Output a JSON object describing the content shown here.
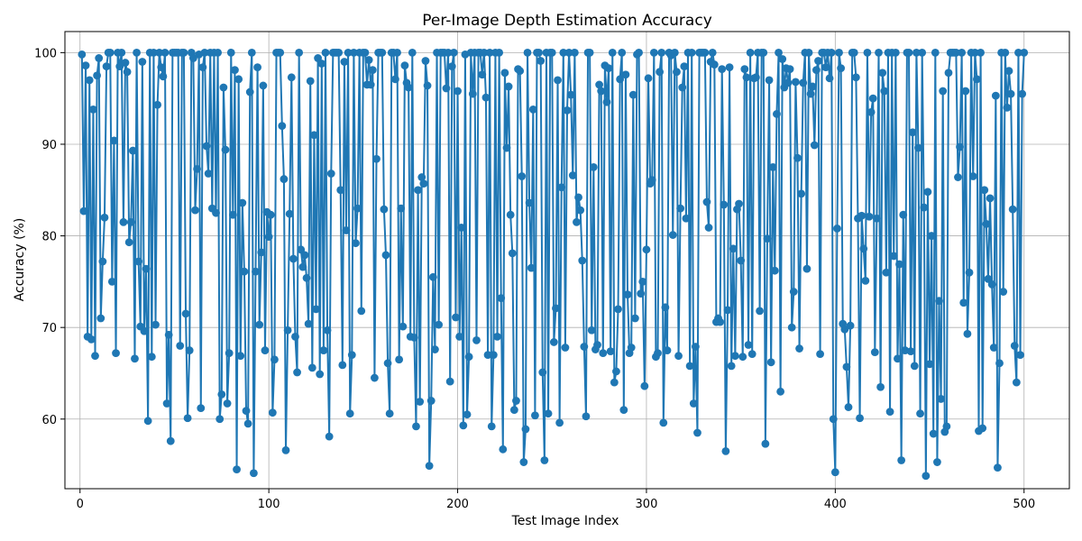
{
  "chart_data": {
    "type": "line",
    "title": "Per-Image Depth Estimation Accuracy",
    "xlabel": "Test Image Index",
    "ylabel": "Accuracy (%)",
    "xlim": [
      -8,
      524
    ],
    "ylim": [
      52.4,
      102.3
    ],
    "xticks": [
      0,
      100,
      200,
      300,
      400,
      500
    ],
    "yticks": [
      60,
      70,
      80,
      90,
      100
    ],
    "grid": true,
    "marker": "circle",
    "color": "#1f77b4",
    "series": [
      {
        "x": [
          1,
          2,
          3,
          4,
          5,
          6,
          7,
          8,
          9,
          10,
          11,
          12,
          13,
          14,
          15,
          16,
          17,
          18,
          19,
          20,
          21,
          22,
          23,
          24,
          25,
          26,
          27,
          28,
          29,
          30,
          31,
          32,
          33,
          34,
          35,
          36,
          37,
          38,
          39,
          40,
          41,
          42,
          43,
          44,
          45,
          46,
          47,
          48,
          49,
          50,
          51,
          52,
          53,
          54,
          55,
          56,
          57,
          58,
          59,
          60,
          61,
          62,
          63,
          64,
          65,
          66,
          67,
          68,
          69,
          70,
          71,
          72,
          73,
          74,
          75,
          76,
          77,
          78,
          79,
          80,
          81,
          82,
          83,
          84,
          85,
          86,
          87,
          88,
          89,
          90,
          91,
          92,
          93,
          94,
          95,
          96,
          97,
          98,
          99,
          100,
          101,
          102,
          103,
          104,
          105,
          106,
          107,
          108,
          109,
          110,
          111,
          112,
          113,
          114,
          115,
          116,
          117,
          118,
          119,
          120,
          121,
          122,
          123,
          124,
          125,
          126,
          127,
          128,
          129,
          130,
          131,
          132,
          133,
          134,
          135,
          136,
          137,
          138,
          139,
          140,
          141,
          142,
          143,
          144,
          145,
          146,
          147,
          148,
          149,
          150,
          151,
          152,
          153,
          154,
          155,
          156,
          157,
          158,
          159,
          160,
          161,
          162,
          163,
          164,
          165,
          166,
          167,
          168,
          169,
          170,
          171,
          172,
          173,
          174,
          175,
          176,
          177,
          178,
          179,
          180,
          181,
          182,
          183,
          184,
          185,
          186,
          187,
          188,
          189,
          190,
          191,
          192,
          193,
          194,
          195,
          196,
          197,
          198,
          199,
          200,
          201,
          202,
          203,
          204,
          205,
          206,
          207,
          208,
          209,
          210,
          211,
          212,
          213,
          214,
          215,
          216,
          217,
          218,
          219,
          220,
          221,
          222,
          223,
          224,
          225,
          226,
          227,
          228,
          229,
          230,
          231,
          232,
          233,
          234,
          235,
          236,
          237,
          238,
          239,
          240,
          241,
          242,
          243,
          244,
          245,
          246,
          247,
          248,
          249,
          250,
          251,
          252,
          253,
          254,
          255,
          256,
          257,
          258,
          259,
          260,
          261,
          262,
          263,
          264,
          265,
          266,
          267,
          268,
          269,
          270,
          271,
          272,
          273,
          274,
          275,
          276,
          277,
          278,
          279,
          280,
          281,
          282,
          283,
          284,
          285,
          286,
          287,
          288,
          289,
          290,
          291,
          292,
          293,
          294,
          295,
          296,
          297,
          298,
          299,
          300,
          301,
          302,
          303,
          304,
          305,
          306,
          307,
          308,
          309,
          310,
          311,
          312,
          313,
          314,
          315,
          316,
          317,
          318,
          319,
          320,
          321,
          322,
          323,
          324,
          325,
          326,
          327,
          328,
          329,
          330,
          331,
          332,
          333,
          334,
          335,
          336,
          337,
          338,
          339,
          340,
          341,
          342,
          343,
          344,
          345,
          346,
          347,
          348,
          349,
          350,
          351,
          352,
          353,
          354,
          355,
          356,
          357,
          358,
          359,
          360,
          361,
          362,
          363,
          364,
          365,
          366,
          367,
          368,
          369,
          370,
          371,
          372,
          373,
          374,
          375,
          376,
          377,
          378,
          379,
          380,
          381,
          382,
          383,
          384,
          385,
          386,
          387,
          388,
          389,
          390,
          391,
          392,
          393,
          394,
          395,
          396,
          397,
          398,
          399,
          400,
          401,
          402,
          403,
          404,
          405,
          406,
          407,
          408,
          409,
          410,
          411,
          412,
          413,
          414,
          415,
          416,
          417,
          418,
          419,
          420,
          421,
          422,
          423,
          424,
          425,
          426,
          427,
          428,
          429,
          430,
          431,
          432,
          433,
          434,
          435,
          436,
          437,
          438,
          439,
          440,
          441,
          442,
          443,
          444,
          445,
          446,
          447,
          448,
          449,
          450,
          451,
          452,
          453,
          454,
          455,
          456,
          457,
          458,
          459,
          460,
          461,
          462,
          463,
          464,
          465,
          466,
          467,
          468,
          469,
          470,
          471,
          472,
          473,
          474,
          475,
          476,
          477,
          478,
          479,
          480,
          481,
          482,
          483,
          484,
          485,
          486,
          487,
          488,
          489,
          490,
          491,
          492,
          493,
          494,
          495,
          496,
          497,
          498,
          499,
          500
        ],
        "y": [
          99.8,
          82.7,
          98.6,
          69.0,
          97.0,
          68.7,
          93.8,
          66.9,
          97.5,
          99.4,
          71.0,
          77.2,
          82.0,
          98.5,
          100.0,
          100.0,
          75.0,
          90.4,
          67.2,
          100.0,
          98.5,
          100.0,
          81.5,
          98.9,
          97.9,
          79.3,
          81.5,
          89.3,
          66.6,
          100.0,
          77.2,
          70.1,
          99.0,
          69.6,
          76.4,
          59.8,
          100.0,
          66.8,
          100.0,
          70.3,
          94.3,
          100.0,
          98.4,
          97.4,
          100.0,
          61.7,
          69.2,
          57.6,
          100.0,
          100.0,
          100.0,
          100.0,
          68.0,
          100.0,
          100.0,
          71.5,
          60.1,
          67.5,
          100.0,
          99.4,
          82.8,
          87.3,
          99.8,
          61.2,
          98.4,
          100.0,
          89.8,
          86.8,
          100.0,
          83.0,
          100.0,
          82.5,
          100.0,
          60.0,
          62.7,
          96.2,
          89.4,
          61.7,
          67.2,
          100.0,
          82.3,
          98.1,
          54.5,
          97.1,
          66.9,
          83.6,
          76.1,
          60.9,
          59.5,
          95.7,
          100.0,
          54.1,
          76.1,
          98.4,
          70.3,
          78.2,
          96.4,
          67.5,
          82.6,
          79.9,
          82.3,
          60.7,
          66.5,
          100.0,
          100.0,
          100.0,
          92.0,
          86.2,
          56.6,
          69.7,
          82.4,
          97.3,
          77.5,
          69.0,
          65.1,
          100.0,
          78.5,
          76.6,
          77.9,
          75.4,
          70.4,
          96.9,
          65.6,
          91.0,
          72.0,
          99.4,
          64.9,
          98.8,
          67.5,
          100.0,
          69.7,
          58.1,
          86.8,
          100.0,
          100.0,
          100.0,
          100.0,
          85.0,
          65.9,
          99.0,
          80.6,
          100.0,
          60.6,
          67.0,
          100.0,
          79.2,
          83.0,
          100.0,
          71.8,
          100.0,
          100.0,
          96.5,
          99.2,
          96.5,
          98.1,
          64.5,
          88.4,
          100.0,
          100.0,
          100.0,
          82.9,
          77.9,
          66.1,
          60.6,
          100.0,
          100.0,
          97.1,
          100.0,
          66.5,
          83.0,
          70.1,
          98.6,
          96.7,
          96.2,
          69.0,
          100.0,
          68.9,
          59.2,
          85.0,
          61.9,
          86.4,
          85.7,
          99.1,
          96.4,
          54.9,
          62.0,
          75.5,
          67.6,
          100.0,
          70.3,
          100.0,
          100.0,
          100.0,
          96.1,
          100.0,
          64.1,
          98.5,
          100.0,
          71.1,
          95.8,
          69.0,
          80.9,
          59.3,
          99.8,
          60.5,
          66.8,
          100.0,
          95.5,
          100.0,
          68.6,
          100.0,
          100.0,
          97.6,
          100.0,
          95.1,
          67.0,
          100.0,
          59.2,
          67.0,
          100.0,
          69.0,
          100.0,
          73.2,
          56.7,
          97.8,
          89.6,
          96.3,
          82.3,
          78.1,
          61.0,
          62.0,
          98.2,
          98.0,
          86.5,
          55.3,
          58.9,
          100.0,
          83.6,
          76.5,
          93.8,
          60.4,
          100.0,
          100.0,
          99.1,
          65.1,
          55.5,
          100.0,
          60.6,
          100.0,
          100.0,
          68.4,
          72.1,
          97.0,
          59.6,
          85.3,
          100.0,
          67.8,
          93.7,
          100.0,
          95.4,
          86.6,
          100.0,
          81.5,
          84.2,
          82.8,
          77.3,
          67.9,
          60.3,
          100.0,
          100.0,
          69.7,
          87.5,
          67.6,
          68.1,
          96.5,
          95.8,
          67.2,
          98.6,
          94.6,
          98.3,
          67.4,
          100.0,
          64.0,
          65.2,
          72.0,
          97.1,
          100.0,
          61.0,
          97.6,
          73.6,
          67.2,
          67.8,
          95.4,
          71.0,
          99.8,
          100.0,
          73.7,
          75.0,
          63.6,
          78.5,
          97.2,
          85.7,
          86.1,
          100.0,
          66.8,
          67.2,
          97.9,
          100.0,
          59.6,
          72.2,
          67.5,
          100.0,
          99.7,
          80.1,
          100.0,
          97.9,
          66.9,
          83.0,
          96.2,
          98.5,
          81.9,
          100.0,
          65.8,
          100.0,
          61.7,
          67.9,
          58.5,
          100.0,
          100.0,
          100.0,
          100.0,
          83.7,
          80.9,
          99.0,
          100.0,
          98.7,
          70.6,
          71.0,
          70.6,
          98.2,
          83.4,
          56.5,
          71.9,
          98.4,
          65.8,
          78.6,
          66.9,
          82.9,
          83.5,
          77.3,
          66.8,
          98.2,
          97.3,
          68.1,
          100.0,
          67.1,
          97.2,
          97.3,
          100.0,
          71.8,
          100.0,
          100.0,
          57.3,
          79.7,
          97.0,
          66.2,
          87.5,
          76.2,
          93.3,
          100.0,
          63.0,
          99.3,
          96.2,
          98.3,
          96.7,
          98.2,
          70.0,
          73.9,
          96.8,
          88.5,
          67.7,
          84.6,
          96.7,
          100.0,
          76.4,
          100.0,
          95.5,
          96.3,
          89.9,
          98.1,
          99.1,
          67.1,
          100.0,
          100.0,
          98.4,
          100.0,
          97.2,
          100.0,
          60.0,
          54.2,
          80.8,
          100.0,
          98.3,
          70.4,
          69.8,
          65.7,
          61.3,
          70.2,
          100.0,
          100.0,
          97.3,
          81.9,
          60.1,
          82.2,
          78.6,
          75.1,
          100.0,
          82.1,
          93.5,
          95.0,
          67.3,
          81.9,
          100.0,
          63.5,
          97.8,
          95.8,
          76.0,
          100.0,
          60.8,
          100.0,
          77.8,
          100.0,
          66.6,
          76.9,
          55.5,
          82.3,
          67.5,
          100.0,
          100.0,
          67.4,
          91.3,
          65.8,
          100.0,
          89.6,
          60.6,
          100.0,
          83.1,
          53.8,
          84.8,
          66.0,
          80.0,
          58.4,
          100.0,
          55.3,
          72.9,
          62.2,
          95.8,
          58.6,
          59.2,
          97.8,
          100.0,
          100.0,
          100.0,
          100.0,
          86.4,
          89.7,
          100.0,
          72.7,
          95.8,
          69.3,
          76.0,
          100.0,
          86.5,
          100.0,
          97.1,
          58.7,
          100.0,
          59.0,
          85.0,
          81.3,
          75.3,
          84.1,
          74.7,
          67.8,
          95.3,
          54.7,
          66.1,
          100.0,
          73.9,
          100.0,
          94.0,
          98.0,
          95.5,
          82.9,
          68.0,
          64.0,
          100.0,
          67.0,
          95.5,
          100.0
        ]
      }
    ]
  }
}
